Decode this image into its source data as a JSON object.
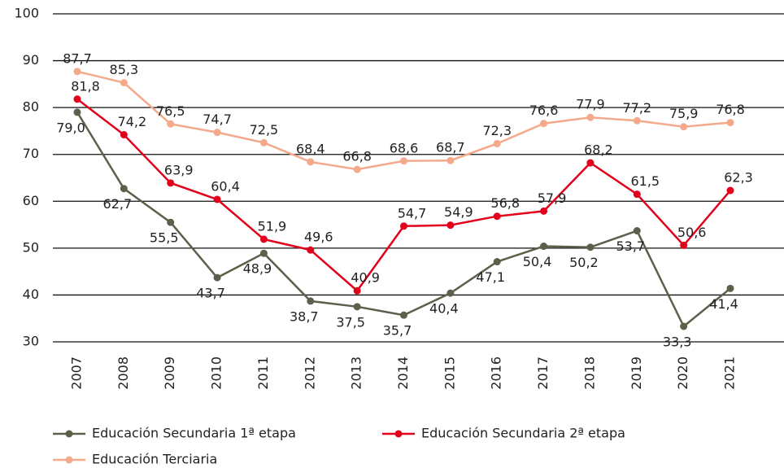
{
  "chart_data": {
    "type": "line",
    "categories": [
      "2007",
      "2008",
      "2009",
      "2010",
      "2011",
      "2012",
      "2013",
      "2014",
      "2015",
      "2016",
      "2017",
      "2018",
      "2019",
      "2020",
      "2021"
    ],
    "series": [
      {
        "name": "Educación Secundaria 1ª etapa",
        "color": "#5c604b",
        "values": [
          79.0,
          62.7,
          55.5,
          43.7,
          48.9,
          38.7,
          37.5,
          35.7,
          40.4,
          47.1,
          50.4,
          50.2,
          53.7,
          33.3,
          41.4
        ],
        "value_labels": [
          "79,0",
          "62,7",
          "55,5",
          "43,7",
          "48,9",
          "38,7",
          "37,5",
          "35,7",
          "40,4",
          "47,1",
          "50,4",
          "50,2",
          "53,7",
          "33,3",
          "41,4"
        ]
      },
      {
        "name": "Educación Secundaria 2ª etapa",
        "color": "#e2001a",
        "values": [
          81.8,
          74.2,
          63.9,
          60.4,
          51.9,
          49.6,
          40.9,
          54.7,
          54.9,
          56.8,
          57.9,
          68.2,
          61.5,
          50.6,
          62.3
        ],
        "value_labels": [
          "81,8",
          "74,2",
          "63,9",
          "60,4",
          "51,9",
          "49,6",
          "40,9",
          "54,7",
          "54,9",
          "56,8",
          "57,9",
          "68,2",
          "61,5",
          "50,6",
          "62,3"
        ]
      },
      {
        "name": "Educación Terciaria",
        "color": "#f4a98b",
        "values": [
          87.7,
          85.3,
          76.5,
          74.7,
          72.5,
          68.4,
          66.8,
          68.6,
          68.7,
          72.3,
          76.6,
          77.9,
          77.2,
          75.9,
          76.8
        ],
        "value_labels": [
          "87,7",
          "85,3",
          "76,5",
          "74,7",
          "72,5",
          "68,4",
          "66,8",
          "68,6",
          "68,7",
          "72,3",
          "76,6",
          "77,9",
          "77,2",
          "75,9",
          "76,8"
        ]
      }
    ],
    "ylim": [
      30,
      100
    ],
    "yticks": [
      30,
      40,
      50,
      60,
      70,
      80,
      90,
      100
    ],
    "grid": true
  }
}
